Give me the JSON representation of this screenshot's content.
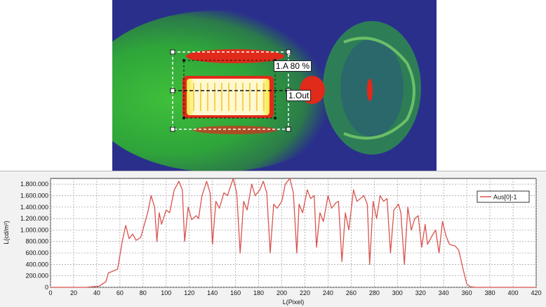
{
  "thermal_image": {
    "roi_area_label": "1.A 80 %",
    "roi_line_label": "1.Out",
    "roi_marker": "1",
    "colors": {
      "background": "#2a2f8c",
      "green": "#2fa53a",
      "yellow": "#f4e83a",
      "red": "#e02a1a",
      "white_hot": "#fff8d0"
    }
  },
  "chart_data": {
    "type": "line",
    "xlabel": "L(Pixel)",
    "ylabel": "L(cd/m²)",
    "xlim": [
      0,
      420
    ],
    "ylim": [
      0,
      1900000
    ],
    "x_ticks": [
      "0",
      "20",
      "40",
      "60",
      "80",
      "100",
      "120",
      "140",
      "160",
      "180",
      "200",
      "220",
      "240",
      "260",
      "280",
      "300",
      "320",
      "340",
      "360",
      "380",
      "400",
      "420"
    ],
    "y_ticks": [
      "0",
      "200.000",
      "400.000",
      "600.000",
      "800.000",
      "1.000.000",
      "1.200.000",
      "1.400.000",
      "1.600.000",
      "1.800.000"
    ],
    "grid": true,
    "legend_position": "top-right",
    "series": [
      {
        "name": "Aus[0]-1",
        "color": "#d9534f",
        "points": [
          [
            0,
            0
          ],
          [
            30,
            0
          ],
          [
            42,
            20000
          ],
          [
            48,
            100000
          ],
          [
            50,
            250000
          ],
          [
            56,
            300000
          ],
          [
            58,
            320000
          ],
          [
            62,
            800000
          ],
          [
            65,
            1080000
          ],
          [
            68,
            850000
          ],
          [
            71,
            930000
          ],
          [
            74,
            820000
          ],
          [
            78,
            870000
          ],
          [
            84,
            1300000
          ],
          [
            87,
            1600000
          ],
          [
            90,
            1400000
          ],
          [
            92,
            800000
          ],
          [
            94,
            1300000
          ],
          [
            96,
            1100000
          ],
          [
            100,
            1350000
          ],
          [
            103,
            1300000
          ],
          [
            107,
            1700000
          ],
          [
            111,
            1850000
          ],
          [
            114,
            1700000
          ],
          [
            116,
            800000
          ],
          [
            119,
            1400000
          ],
          [
            122,
            1180000
          ],
          [
            126,
            1250000
          ],
          [
            128,
            1200000
          ],
          [
            131,
            1600000
          ],
          [
            135,
            1850000
          ],
          [
            138,
            1650000
          ],
          [
            140,
            750000
          ],
          [
            143,
            1500000
          ],
          [
            146,
            1380000
          ],
          [
            150,
            1650000
          ],
          [
            153,
            1600000
          ],
          [
            158,
            1900000
          ],
          [
            161,
            1650000
          ],
          [
            164,
            600000
          ],
          [
            167,
            1500000
          ],
          [
            170,
            1350000
          ],
          [
            174,
            1800000
          ],
          [
            177,
            1600000
          ],
          [
            181,
            1700000
          ],
          [
            184,
            1850000
          ],
          [
            187,
            1650000
          ],
          [
            190,
            600000
          ],
          [
            193,
            1450000
          ],
          [
            196,
            1380000
          ],
          [
            200,
            1500000
          ],
          [
            203,
            1800000
          ],
          [
            207,
            1900000
          ],
          [
            210,
            1650000
          ],
          [
            213,
            600000
          ],
          [
            215,
            1450000
          ],
          [
            218,
            1300000
          ],
          [
            222,
            1700000
          ],
          [
            225,
            1550000
          ],
          [
            228,
            1600000
          ],
          [
            230,
            700000
          ],
          [
            233,
            1300000
          ],
          [
            236,
            1150000
          ],
          [
            240,
            1600000
          ],
          [
            243,
            1380000
          ],
          [
            247,
            1480000
          ],
          [
            249,
            1500000
          ],
          [
            252,
            450000
          ],
          [
            255,
            1300000
          ],
          [
            258,
            1000000
          ],
          [
            262,
            1700000
          ],
          [
            265,
            1500000
          ],
          [
            268,
            1550000
          ],
          [
            271,
            1600000
          ],
          [
            274,
            1450000
          ],
          [
            276,
            400000
          ],
          [
            279,
            1500000
          ],
          [
            282,
            1200000
          ],
          [
            285,
            1600000
          ],
          [
            288,
            1500000
          ],
          [
            291,
            1550000
          ],
          [
            294,
            600000
          ],
          [
            297,
            1350000
          ],
          [
            301,
            1450000
          ],
          [
            303,
            1300000
          ],
          [
            306,
            400000
          ],
          [
            309,
            1400000
          ],
          [
            312,
            1000000
          ],
          [
            315,
            1200000
          ],
          [
            318,
            1250000
          ],
          [
            321,
            700000
          ],
          [
            324,
            1100000
          ],
          [
            326,
            750000
          ],
          [
            330,
            900000
          ],
          [
            333,
            1000000
          ],
          [
            336,
            600000
          ],
          [
            339,
            1150000
          ],
          [
            342,
            900000
          ],
          [
            345,
            750000
          ],
          [
            350,
            720000
          ],
          [
            353,
            650000
          ],
          [
            357,
            300000
          ],
          [
            360,
            60000
          ],
          [
            363,
            10000
          ],
          [
            368,
            0
          ],
          [
            420,
            0
          ]
        ]
      }
    ]
  }
}
